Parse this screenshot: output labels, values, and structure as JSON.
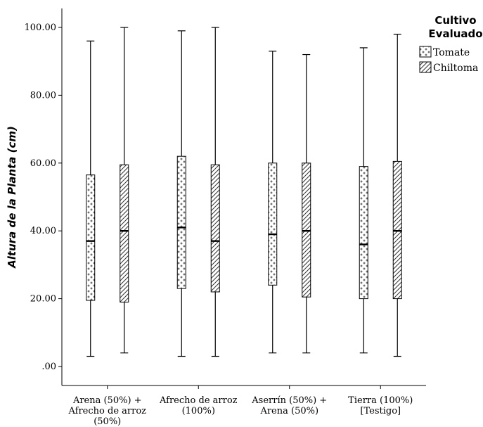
{
  "chart_data": {
    "type": "boxplot",
    "ylabel": "Altura de la Planta (cm)",
    "xlabel": "",
    "ylim": [
      -5,
      106
    ],
    "yticks": [
      0,
      20,
      40,
      60,
      80,
      100
    ],
    "ytick_labels": [
      ".00",
      "20.00",
      "40.00",
      "60.00",
      "80.00",
      "100.00"
    ],
    "categories": [
      [
        "Arena (50%) +",
        "Afrecho de arroz",
        "(50%)"
      ],
      [
        "Afrecho de arroz",
        "(100%)"
      ],
      [
        "Aserrín (50%) +",
        "Arena (50%)"
      ],
      [
        "Tierra (100%)",
        "[Testigo]"
      ]
    ],
    "legend": {
      "title_lines": [
        "Cultivo",
        "Evaluado"
      ],
      "position": "top-right"
    },
    "series": [
      {
        "name": "Tomate",
        "pattern": "crosses",
        "boxes": [
          {
            "min": 3,
            "q1": 19.5,
            "median": 37,
            "q3": 56.5,
            "max": 96
          },
          {
            "min": 3,
            "q1": 23,
            "median": 41,
            "q3": 62,
            "max": 99
          },
          {
            "min": 4,
            "q1": 24,
            "median": 39,
            "q3": 60,
            "max": 93
          },
          {
            "min": 4,
            "q1": 20,
            "median": 36,
            "q3": 59,
            "max": 94
          }
        ]
      },
      {
        "name": "Chiltoma",
        "pattern": "diagonal",
        "boxes": [
          {
            "min": 4,
            "q1": 19,
            "median": 40,
            "q3": 59.5,
            "max": 100
          },
          {
            "min": 3,
            "q1": 22,
            "median": 37,
            "q3": 59.5,
            "max": 100
          },
          {
            "min": 4,
            "q1": 20.5,
            "median": 40,
            "q3": 60,
            "max": 92
          },
          {
            "min": 3,
            "q1": 20,
            "median": 40,
            "q3": 60.5,
            "max": 98
          }
        ]
      }
    ]
  }
}
